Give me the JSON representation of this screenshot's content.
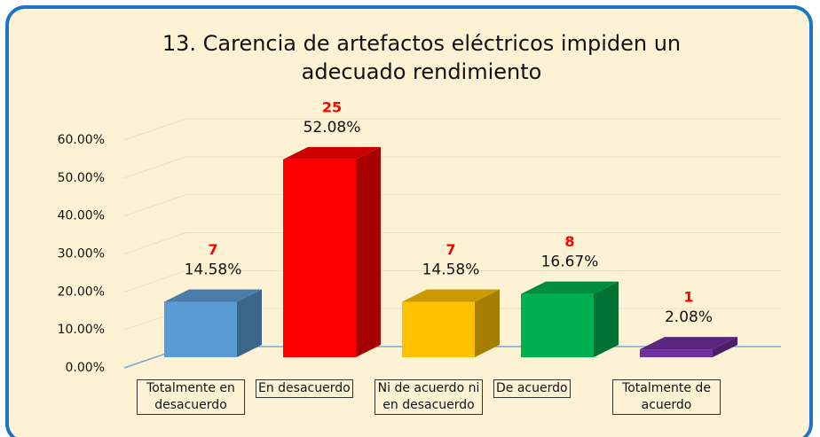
{
  "chart_data": {
    "type": "bar",
    "title": "13. Carencia de artefactos eléctricos impiden un adecuado rendimiento",
    "categories": [
      "Totalmente en desacuerdo",
      "En desacuerdo",
      "Ni de acuerdo ni en desacuerdo",
      "De acuerdo",
      "Totalmente de acuerdo"
    ],
    "values": [
      14.58,
      52.08,
      14.58,
      16.67,
      2.08
    ],
    "value_labels": [
      "14.58%",
      "52.08%",
      "14.58%",
      "16.67%",
      "2.08%"
    ],
    "counts": [
      7,
      25,
      7,
      8,
      1
    ],
    "colors": [
      "#5b9bd5",
      "#ff0000",
      "#ffc000",
      "#00b050",
      "#7030a0"
    ],
    "ylim": [
      0,
      60
    ],
    "yticks": [
      {
        "value": 0,
        "label": "0.00%"
      },
      {
        "value": 10,
        "label": "10.00%"
      },
      {
        "value": 20,
        "label": "20.00%"
      },
      {
        "value": 30,
        "label": "30.00%"
      },
      {
        "value": 40,
        "label": "40.00%"
      },
      {
        "value": 50,
        "label": "50.00%"
      },
      {
        "value": 60,
        "label": "60.00%"
      }
    ],
    "grid": true
  }
}
